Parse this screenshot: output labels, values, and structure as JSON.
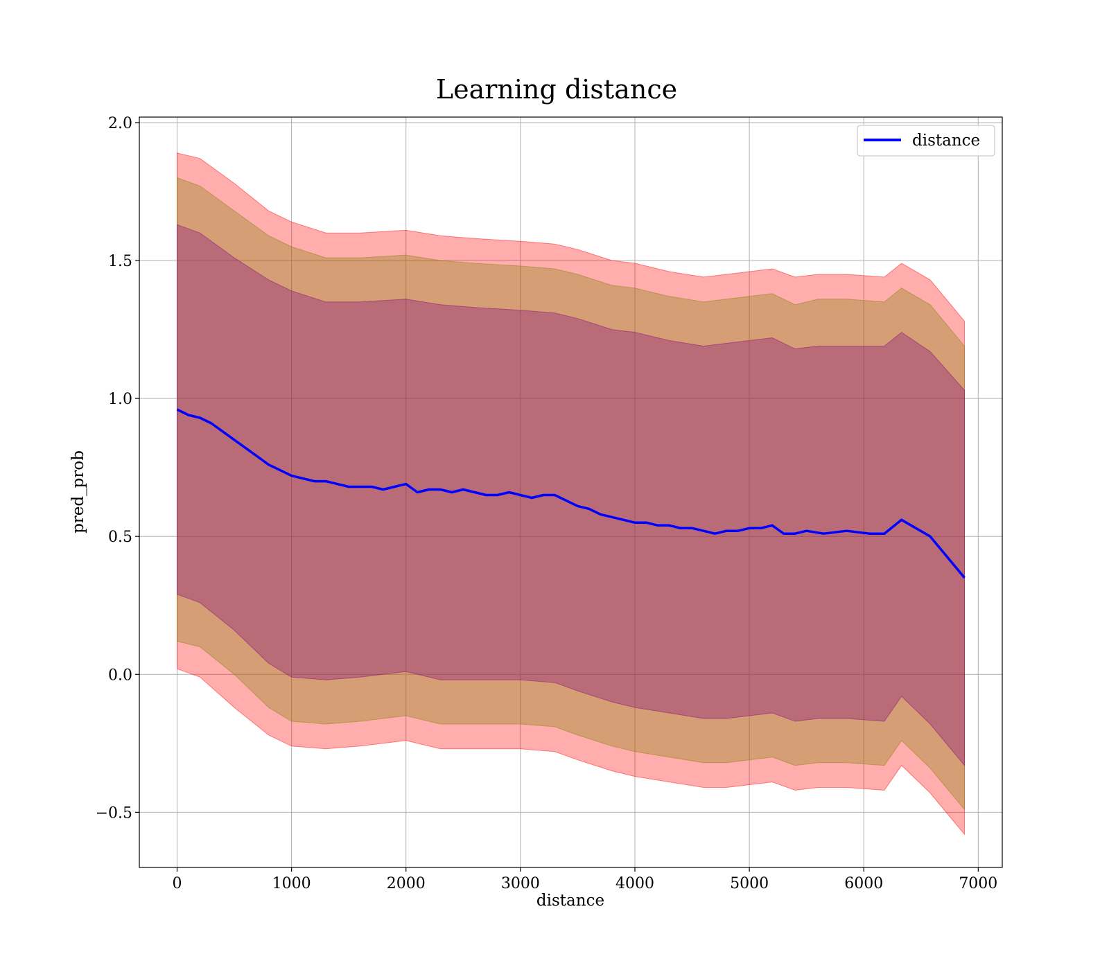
{
  "chart_data": {
    "type": "line",
    "title": "Learning distance",
    "xlabel": "distance",
    "ylabel": "pred_prob",
    "xlim": [
      -330,
      7210
    ],
    "ylim": [
      -0.7,
      2.02
    ],
    "xticks": [
      0,
      1000,
      2000,
      3000,
      4000,
      5000,
      6000,
      7000
    ],
    "xtick_labels": [
      "0",
      "1000",
      "2000",
      "3000",
      "4000",
      "5000",
      "6000",
      "7000"
    ],
    "yticks": [
      -0.5,
      0.0,
      0.5,
      1.0,
      1.5,
      2.0
    ],
    "ytick_labels": [
      "−0.5",
      "0.0",
      "0.5",
      "1.0",
      "1.5",
      "2.0"
    ],
    "grid": true,
    "legend": {
      "placement": "top-right",
      "entries": [
        "distance"
      ]
    },
    "series": [
      {
        "name": "distance",
        "color": "#0000ff",
        "x": [
          0,
          100,
          200,
          300,
          400,
          500,
          600,
          700,
          800,
          900,
          1000,
          1100,
          1200,
          1300,
          1400,
          1500,
          1600,
          1700,
          1800,
          1900,
          2000,
          2100,
          2200,
          2300,
          2400,
          2500,
          2600,
          2700,
          2800,
          2900,
          3000,
          3100,
          3200,
          3300,
          3400,
          3500,
          3600,
          3700,
          3800,
          3900,
          4000,
          4100,
          4200,
          4300,
          4400,
          4500,
          4600,
          4700,
          4800,
          4900,
          5000,
          5100,
          5200,
          5300,
          5400,
          5500,
          5650,
          5850,
          6050,
          6180,
          6330,
          6580,
          6880
        ],
        "y": [
          0.96,
          0.94,
          0.93,
          0.91,
          0.88,
          0.85,
          0.82,
          0.79,
          0.76,
          0.74,
          0.72,
          0.71,
          0.7,
          0.7,
          0.69,
          0.68,
          0.68,
          0.68,
          0.67,
          0.68,
          0.69,
          0.66,
          0.67,
          0.67,
          0.66,
          0.67,
          0.66,
          0.65,
          0.65,
          0.66,
          0.65,
          0.64,
          0.65,
          0.65,
          0.63,
          0.61,
          0.6,
          0.58,
          0.57,
          0.56,
          0.55,
          0.55,
          0.54,
          0.54,
          0.53,
          0.53,
          0.52,
          0.51,
          0.52,
          0.52,
          0.53,
          0.53,
          0.54,
          0.51,
          0.51,
          0.52,
          0.51,
          0.52,
          0.51,
          0.51,
          0.56,
          0.5,
          0.35
        ]
      }
    ],
    "bands": [
      {
        "color": "#ff0000",
        "opacity": 0.32,
        "x": [
          0,
          200,
          500,
          800,
          1000,
          1300,
          1600,
          2000,
          2300,
          2600,
          3000,
          3300,
          3500,
          3800,
          4000,
          4300,
          4600,
          4800,
          5000,
          5200,
          5400,
          5600,
          5850,
          6180,
          6330,
          6580,
          6880
        ],
        "upper": [
          1.89,
          1.87,
          1.78,
          1.68,
          1.64,
          1.6,
          1.6,
          1.61,
          1.59,
          1.58,
          1.57,
          1.56,
          1.54,
          1.5,
          1.49,
          1.46,
          1.44,
          1.45,
          1.46,
          1.47,
          1.44,
          1.45,
          1.45,
          1.44,
          1.49,
          1.43,
          1.28
        ],
        "lower": [
          0.02,
          -0.01,
          -0.12,
          -0.22,
          -0.26,
          -0.27,
          -0.26,
          -0.24,
          -0.27,
          -0.27,
          -0.27,
          -0.28,
          -0.31,
          -0.35,
          -0.37,
          -0.39,
          -0.41,
          -0.41,
          -0.4,
          -0.39,
          -0.42,
          -0.41,
          -0.41,
          -0.42,
          -0.33,
          -0.43,
          -0.58
        ]
      },
      {
        "color": "#808000",
        "opacity": 0.32,
        "x": [
          0,
          200,
          500,
          800,
          1000,
          1300,
          1600,
          2000,
          2300,
          2600,
          3000,
          3300,
          3500,
          3800,
          4000,
          4300,
          4600,
          4800,
          5000,
          5200,
          5400,
          5600,
          5850,
          6180,
          6330,
          6580,
          6880
        ],
        "upper": [
          1.8,
          1.77,
          1.68,
          1.59,
          1.55,
          1.51,
          1.51,
          1.52,
          1.5,
          1.49,
          1.48,
          1.47,
          1.45,
          1.41,
          1.4,
          1.37,
          1.35,
          1.36,
          1.37,
          1.38,
          1.34,
          1.36,
          1.36,
          1.35,
          1.4,
          1.34,
          1.19
        ],
        "lower": [
          0.12,
          0.1,
          0.0,
          -0.12,
          -0.17,
          -0.18,
          -0.17,
          -0.15,
          -0.18,
          -0.18,
          -0.18,
          -0.19,
          -0.22,
          -0.26,
          -0.28,
          -0.3,
          -0.32,
          -0.32,
          -0.31,
          -0.3,
          -0.33,
          -0.32,
          -0.32,
          -0.33,
          -0.24,
          -0.34,
          -0.49
        ]
      },
      {
        "color": "#800080",
        "opacity": 0.32,
        "x": [
          0,
          200,
          500,
          800,
          1000,
          1300,
          1600,
          2000,
          2300,
          2600,
          3000,
          3300,
          3500,
          3800,
          4000,
          4300,
          4600,
          4800,
          5000,
          5200,
          5400,
          5600,
          5850,
          6180,
          6330,
          6580,
          6880
        ],
        "upper": [
          1.63,
          1.6,
          1.51,
          1.43,
          1.39,
          1.35,
          1.35,
          1.36,
          1.34,
          1.33,
          1.32,
          1.31,
          1.29,
          1.25,
          1.24,
          1.21,
          1.19,
          1.2,
          1.21,
          1.22,
          1.18,
          1.19,
          1.19,
          1.19,
          1.24,
          1.17,
          1.03
        ],
        "lower": [
          0.29,
          0.26,
          0.16,
          0.04,
          -0.01,
          -0.02,
          -0.01,
          0.01,
          -0.02,
          -0.02,
          -0.02,
          -0.03,
          -0.06,
          -0.1,
          -0.12,
          -0.14,
          -0.16,
          -0.16,
          -0.15,
          -0.14,
          -0.17,
          -0.16,
          -0.16,
          -0.17,
          -0.08,
          -0.18,
          -0.33
        ]
      }
    ]
  }
}
